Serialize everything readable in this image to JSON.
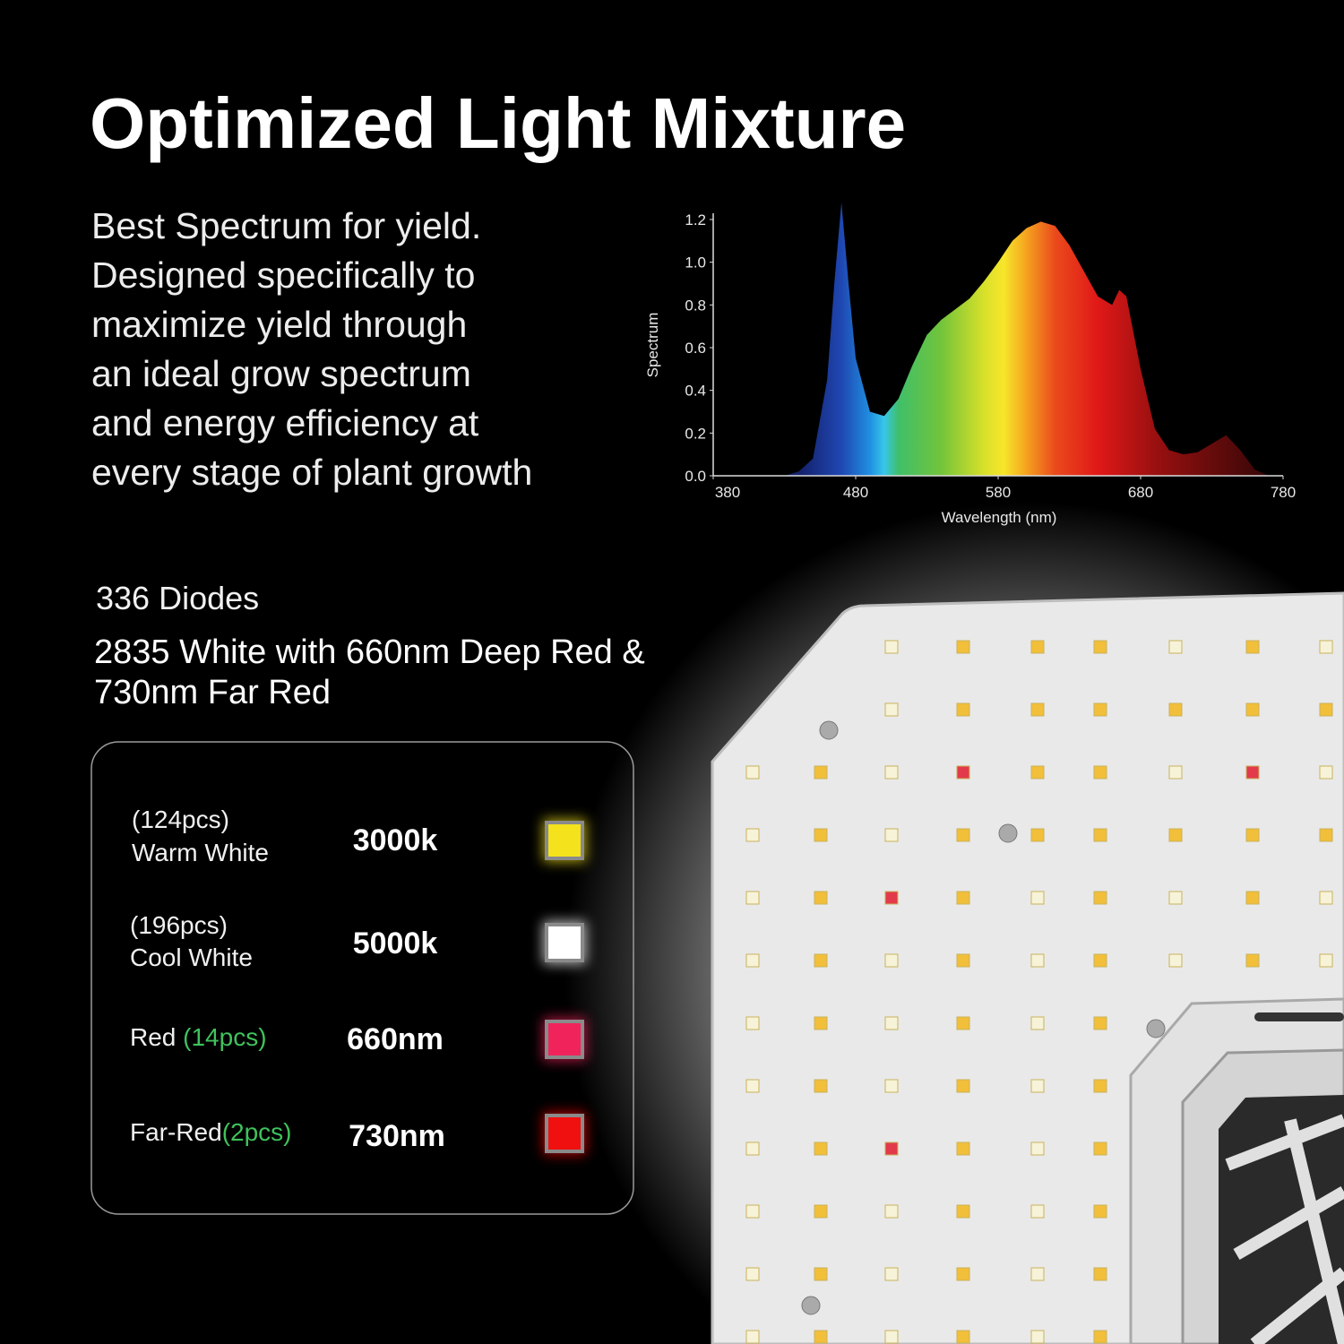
{
  "header": {
    "title": "Optimized Light Mixture"
  },
  "description": [
    "Best Spectrum for yield.",
    "Designed specifically to",
    "maximize yield through",
    "an ideal grow spectrum",
    "and energy efficiency at",
    "every stage of plant growth"
  ],
  "chart_data": {
    "type": "area",
    "x_label": "Wavelength (nm)",
    "y_label": "Spectrum",
    "x": [
      380,
      400,
      420,
      430,
      440,
      450,
      460,
      465,
      470,
      475,
      480,
      490,
      500,
      510,
      520,
      530,
      540,
      550,
      560,
      570,
      580,
      590,
      600,
      610,
      620,
      630,
      640,
      650,
      660,
      665,
      670,
      680,
      690,
      700,
      710,
      720,
      730,
      740,
      750,
      760,
      770,
      780
    ],
    "values": [
      0,
      0,
      0,
      0,
      0.02,
      0.08,
      0.45,
      0.9,
      1.28,
      0.9,
      0.55,
      0.3,
      0.28,
      0.36,
      0.52,
      0.66,
      0.73,
      0.78,
      0.83,
      0.91,
      1.0,
      1.1,
      1.16,
      1.19,
      1.17,
      1.08,
      0.96,
      0.84,
      0.8,
      0.87,
      0.84,
      0.5,
      0.22,
      0.12,
      0.1,
      0.11,
      0.15,
      0.19,
      0.12,
      0.03,
      0,
      0
    ],
    "xlim": [
      380,
      780
    ],
    "ylim": [
      0,
      1.2
    ],
    "xticks": [
      380,
      480,
      580,
      680,
      780
    ],
    "yticks": [
      {
        "value": 0,
        "label": "0.0"
      },
      0.2,
      0.4,
      0.6,
      0.8,
      {
        "value": 1,
        "label": "1.0"
      },
      1.2
    ]
  },
  "diodes": {
    "count": "336 Diodes",
    "summary": [
      "2835 White with 660nm Deep Red &",
      "730nm Far Red"
    ],
    "rows": [
      {
        "count": "(124pcs)",
        "name": "Warm White",
        "spec": "3000k",
        "color": "#f3e21c"
      },
      {
        "count": "(196pcs)",
        "name": "Cool White",
        "spec": "5000k",
        "color": "#ffffff"
      },
      {
        "name": "Red",
        "count": "(14pcs)",
        "spec": "660nm",
        "color": "#f0245a"
      },
      {
        "name": "Far-Red",
        "count": "(2pcs)",
        "spec": "730nm",
        "color": "#f01010"
      }
    ]
  }
}
